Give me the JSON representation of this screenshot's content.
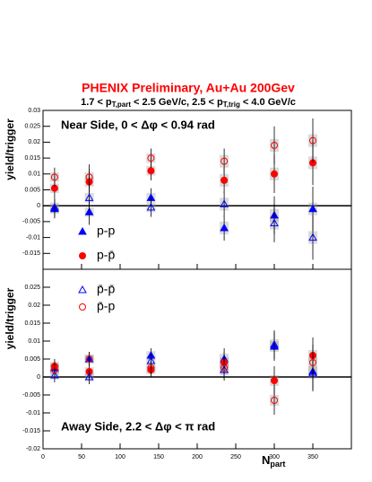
{
  "chart_data": [
    {
      "type": "scatter",
      "title": "PHENIX Preliminary, Au+Au 200Gev",
      "subtitle": [
        "1.7 < p",
        "T,part",
        " < 2.5 GeV/c, 2.5 < p",
        "T,trig",
        " < 4.0 GeV/c"
      ],
      "ylabel": "yield/trigger",
      "annotation": "Near Side, 0 < Δφ < 0.94 rad",
      "x": [
        15,
        60,
        140,
        235,
        300,
        350
      ],
      "xlim": [
        0,
        400
      ],
      "xticks": [
        0,
        50,
        100,
        150,
        200,
        250,
        300,
        350
      ],
      "ylim": [
        -0.02,
        0.03
      ],
      "yticks": [
        -0.015,
        -0.01,
        -0.005,
        0,
        0.005,
        0.01,
        0.015,
        0.02,
        0.025,
        0.03
      ],
      "series": [
        {
          "name": "p-p",
          "color": "#0000ff",
          "marker": "triangle-filled",
          "values": [
            -0.001,
            -0.002,
            0.0025,
            -0.007,
            -0.003,
            -0.001
          ],
          "errors": [
            0.003,
            0.004,
            0.003,
            0.004,
            0.006,
            0.007
          ],
          "sys": [
            0.0015,
            0.0015,
            0.0015,
            0.002,
            0.002,
            0.002
          ]
        },
        {
          "name": "p-p̄",
          "color": "#ff0000",
          "marker": "circle-filled",
          "values": [
            0.0055,
            0.0075,
            0.011,
            0.008,
            0.01,
            0.0135
          ],
          "errors": [
            0.003,
            0.004,
            0.003,
            0.004,
            0.006,
            0.007
          ],
          "sys": [
            0.0015,
            0.0015,
            0.0015,
            0.002,
            0.002,
            0.002
          ]
        },
        {
          "name": "p̄-p̄",
          "color": "#0000ff",
          "marker": "triangle-open",
          "values": [
            -0.0005,
            0.0025,
            -0.0005,
            0.0005,
            -0.0055,
            -0.01
          ],
          "errors": [
            0.003,
            0.004,
            0.003,
            0.004,
            0.006,
            0.007
          ],
          "sys": [
            0.0015,
            0.0015,
            0.0015,
            0.002,
            0.002,
            0.002
          ]
        },
        {
          "name": "p̄-p",
          "color": "#ff0000",
          "marker": "circle-open",
          "values": [
            0.009,
            0.009,
            0.015,
            0.014,
            0.019,
            0.0205
          ],
          "errors": [
            0.003,
            0.004,
            0.003,
            0.004,
            0.006,
            0.007
          ],
          "sys": [
            0.0015,
            0.0015,
            0.0015,
            0.002,
            0.002,
            0.002
          ]
        }
      ]
    },
    {
      "type": "scatter",
      "ylabel": "yield/trigger",
      "annotation": "Away Side, 2.2 < Δφ < π rad",
      "xlabel": [
        "N",
        "part"
      ],
      "x": [
        15,
        60,
        140,
        235,
        300,
        350
      ],
      "xlim": [
        0,
        400
      ],
      "xticks": [
        0,
        50,
        100,
        150,
        200,
        250,
        300,
        350
      ],
      "ylim": [
        -0.02,
        0.03
      ],
      "yticks": [
        -0.02,
        -0.015,
        -0.01,
        -0.005,
        0,
        0.005,
        0.01,
        0.015,
        0.02,
        0.025
      ],
      "series": [
        {
          "name": "p-p",
          "color": "#0000ff",
          "marker": "triangle-filled",
          "values": [
            0.0025,
            0.005,
            0.006,
            0.005,
            0.0085,
            0.0015
          ],
          "errors": [
            0.002,
            0.002,
            0.002,
            0.003,
            0.004,
            0.005
          ],
          "sys": [
            0.0012,
            0.0012,
            0.0012,
            0.0015,
            0.0015,
            0.0015
          ]
        },
        {
          "name": "p-p̄",
          "color": "#ff0000",
          "marker": "circle-filled",
          "values": [
            0.003,
            0.0015,
            0.002,
            0.004,
            -0.001,
            0.006
          ],
          "errors": [
            0.002,
            0.002,
            0.002,
            0.003,
            0.004,
            0.005
          ],
          "sys": [
            0.0012,
            0.0012,
            0.0012,
            0.0015,
            0.0015,
            0.0015
          ]
        },
        {
          "name": "p̄-p̄",
          "color": "#0000ff",
          "marker": "triangle-open",
          "values": [
            0.0005,
            0,
            0.0045,
            0.002,
            0.009,
            0.001
          ],
          "errors": [
            0.002,
            0.002,
            0.002,
            0.003,
            0.004,
            0.005
          ],
          "sys": [
            0.0012,
            0.0012,
            0.0012,
            0.0015,
            0.0015,
            0.0015
          ]
        },
        {
          "name": "p̄-p",
          "color": "#ff0000",
          "marker": "circle-open",
          "values": [
            0.002,
            0.005,
            0.0025,
            0.0025,
            -0.0065,
            0.004
          ],
          "errors": [
            0.002,
            0.002,
            0.002,
            0.003,
            0.004,
            0.005
          ],
          "sys": [
            0.0012,
            0.0012,
            0.0012,
            0.0015,
            0.0015,
            0.0015
          ]
        }
      ]
    }
  ]
}
